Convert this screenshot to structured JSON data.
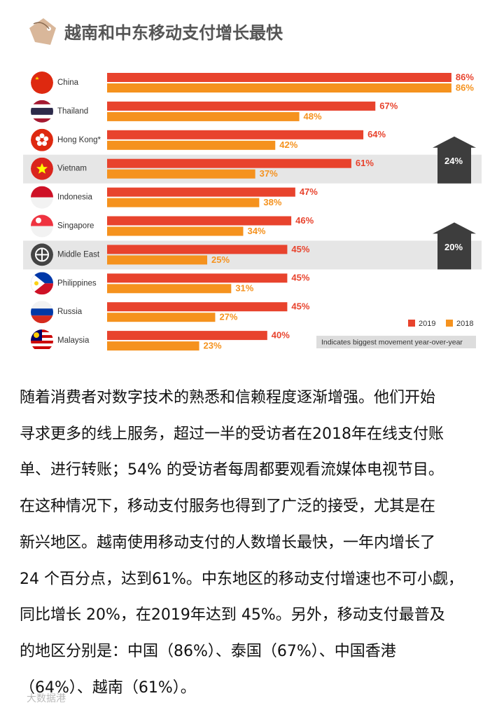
{
  "header": {
    "title": "越南和中东移动支付增长最快"
  },
  "chart_data": {
    "type": "bar",
    "orientation": "horizontal",
    "categories": [
      "China",
      "Thailand",
      "Hong Kong*",
      "Vietnam",
      "Indonesia",
      "Singapore",
      "Middle East",
      "Philippines",
      "Russia",
      "Malaysia"
    ],
    "series": [
      {
        "name": "2019",
        "color": "#e8432d",
        "values": [
          86,
          67,
          64,
          61,
          47,
          46,
          45,
          45,
          45,
          40
        ],
        "value_labels": [
          "86%",
          "67%",
          "64%",
          "61%",
          "47%",
          "46%",
          "45%",
          "45%",
          "45%",
          "40%"
        ]
      },
      {
        "name": "2018",
        "color": "#f5921e",
        "values": [
          86,
          48,
          42,
          37,
          38,
          34,
          25,
          31,
          27,
          23
        ],
        "value_labels": [
          "86%",
          "48%",
          "42%",
          "37%",
          "38%",
          "34%",
          "25%",
          "31%",
          "27%",
          "23%"
        ]
      }
    ],
    "annotations": [
      {
        "text": "24%",
        "category_index": 3
      },
      {
        "text": "20%",
        "category_index": 6
      }
    ],
    "legend_note": "Indicates biggest movement year-over-year",
    "legend": "bottom-right"
  },
  "paragraph": {
    "lines": [
      "随着消费者对数字技术的熟悉和信赖程度逐渐增强。他们开始",
      "寻求更多的线上服务，超过一半的受访者在2018年在线支付账",
      "单、进行转账；54% 的受访者每周都要观看流媒体电视节目。",
      "在这种情况下，移动支付服务也得到了广泛的接受，尤其是在",
      "新兴地区。越南使用移动支付的人数增长最快，一年内增长了",
      "24 个百分点，达到61%。中东地区的移动支付增速也不可小觑，",
      "同比增长 20%，在2019年达到 45%。另外，移动支付最普及",
      "的地区分别是：中国（86%）、泰国（67%）、中国香港",
      "（64%）、越南（61%）。"
    ]
  },
  "watermark": "大数据港"
}
